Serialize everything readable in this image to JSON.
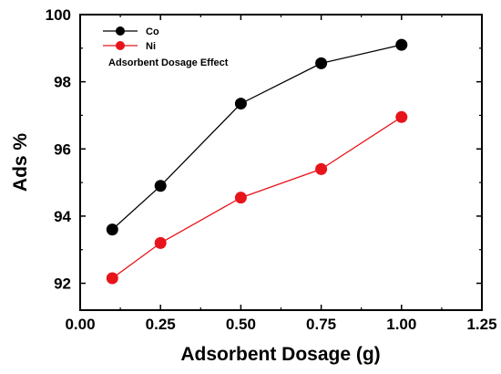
{
  "chart_data": {
    "type": "line",
    "title": "",
    "xlabel": "Adsorbent Dosage (g)",
    "ylabel": "Ads %",
    "xlim": [
      0.0,
      1.25
    ],
    "ylim": [
      91.2,
      100
    ],
    "x_ticks": [
      0.0,
      0.25,
      0.5,
      0.75,
      1.0,
      1.25
    ],
    "x_tick_labels": [
      "0.00",
      "0.25",
      "0.50",
      "0.75",
      "1.00",
      "1.25"
    ],
    "y_ticks": [
      92,
      94,
      96,
      98,
      100
    ],
    "y_tick_labels": [
      "92",
      "94",
      "96",
      "98",
      "100"
    ],
    "grid": false,
    "legend_position": "top-left",
    "annotation": "Adsorbent Dosage Effect",
    "series": [
      {
        "name": "Co",
        "color": "#000000",
        "marker": "circle",
        "x": [
          0.1,
          0.25,
          0.5,
          0.75,
          1.0
        ],
        "y": [
          93.6,
          94.9,
          97.35,
          98.55,
          99.1
        ]
      },
      {
        "name": "Ni",
        "color": "#e8141b",
        "marker": "circle",
        "x": [
          0.1,
          0.25,
          0.5,
          0.75,
          1.0
        ],
        "y": [
          92.15,
          93.2,
          94.55,
          95.4,
          96.95
        ]
      }
    ]
  }
}
